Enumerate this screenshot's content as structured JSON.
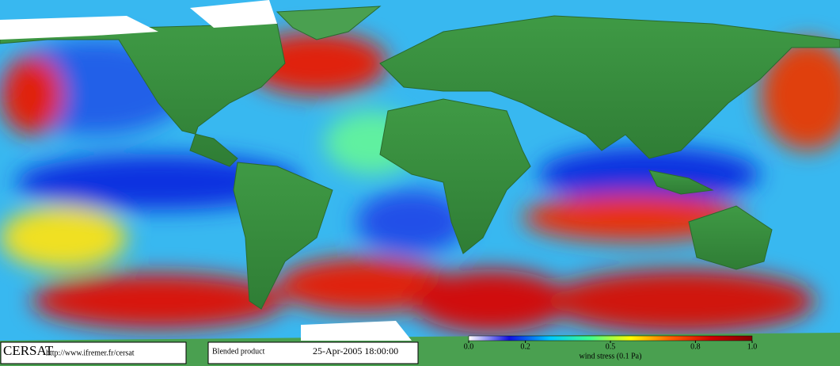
{
  "footer": {
    "logo": "CERSAT",
    "url": "http://www.ifremer.fr/cersat",
    "product": "Blended product",
    "timestamp": "25-Apr-2005 18:00:00"
  },
  "colorbar": {
    "label": "wind stress (0.1 Pa)",
    "range": [
      0,
      1
    ],
    "ticks": [
      {
        "value": 0,
        "label": "0.0"
      },
      {
        "value": 0.2,
        "label": "0.2"
      },
      {
        "value": 0.5,
        "label": "0.5"
      },
      {
        "value": 0.8,
        "label": "0.8"
      },
      {
        "value": 1,
        "label": "1.0"
      }
    ],
    "colors": [
      "#ffffff",
      "#1010e0",
      "#00c8ff",
      "#40ff90",
      "#ffff00",
      "#ff6000",
      "#d00000",
      "#800000"
    ]
  }
}
